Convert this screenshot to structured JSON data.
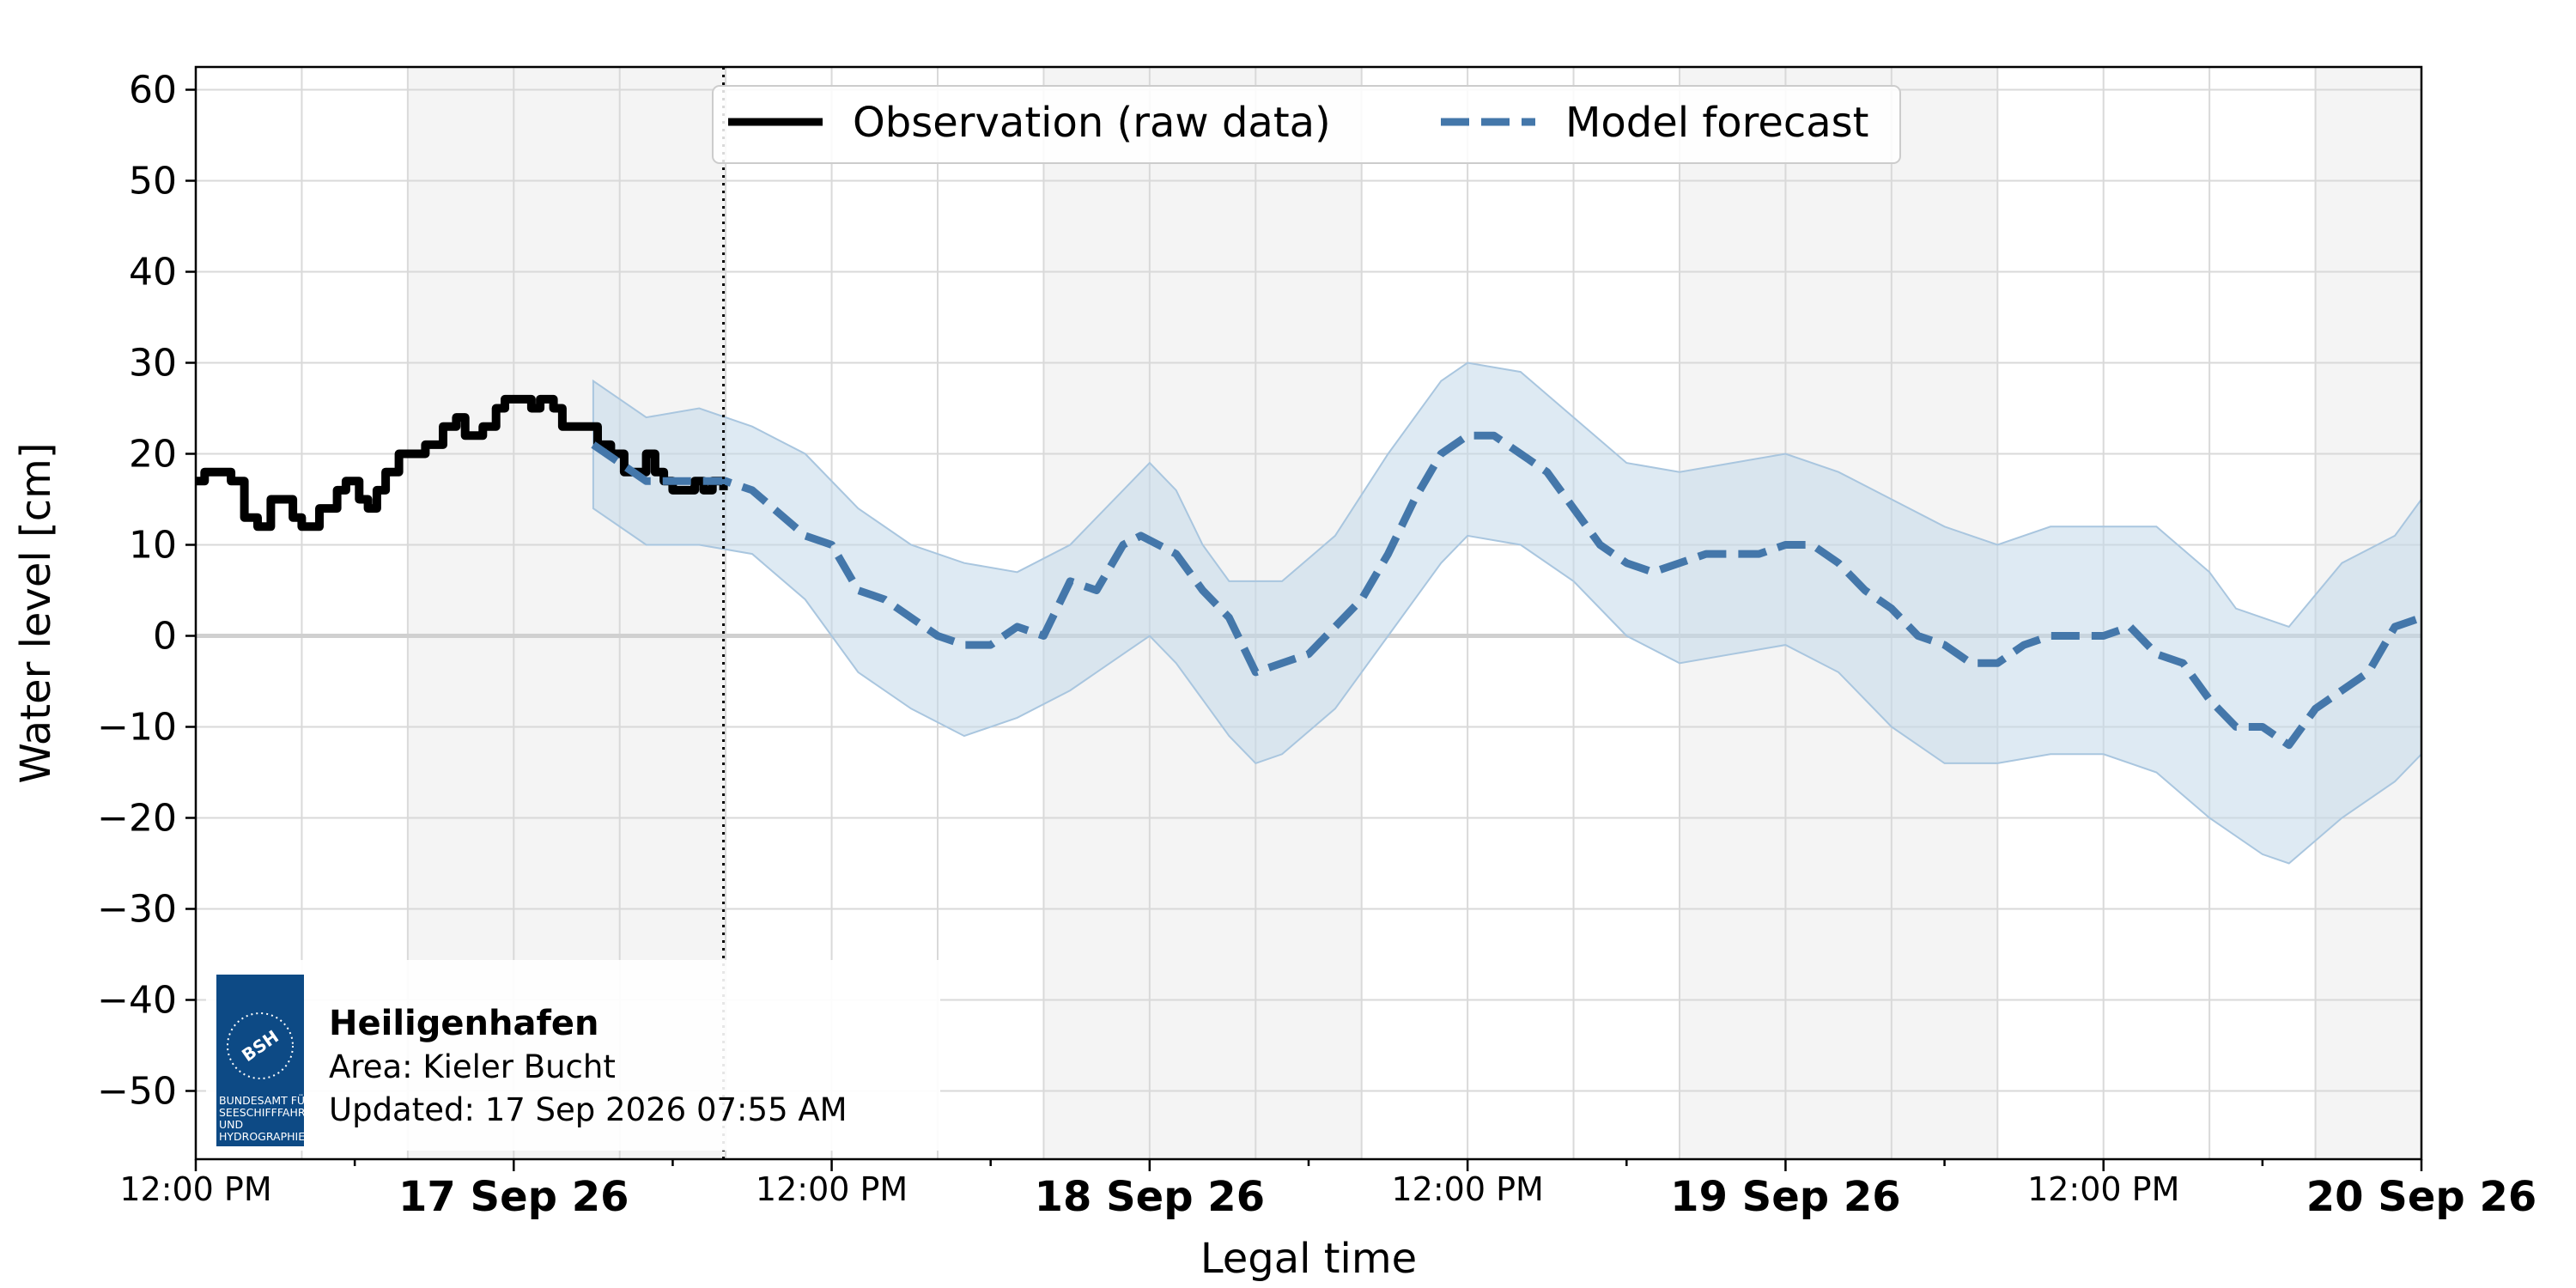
{
  "chart_data": {
    "type": "line",
    "xlabel": "Legal time",
    "ylabel": "Water level [cm]",
    "ylim": [
      -57.5,
      62.5
    ],
    "yticks": [
      -50,
      -40,
      -30,
      -20,
      -10,
      0,
      10,
      20,
      30,
      40,
      50,
      60
    ],
    "ytick_labels": [
      "−50",
      "−40",
      "−30",
      "−20",
      "−10",
      "0",
      "10",
      "20",
      "30",
      "40",
      "50",
      "60"
    ],
    "xlim": [
      "2026-09-16 12:00",
      "2026-09-20 00:00"
    ],
    "xticks_major": [
      {
        "x": "2026-09-16 12:00",
        "label": "12:00 PM",
        "bold": false
      },
      {
        "x": "2026-09-17 00:00",
        "label": "17 Sep 26",
        "bold": true
      },
      {
        "x": "2026-09-17 12:00",
        "label": "12:00 PM",
        "bold": false
      },
      {
        "x": "2026-09-18 00:00",
        "label": "18 Sep 26",
        "bold": true
      },
      {
        "x": "2026-09-18 12:00",
        "label": "12:00 PM",
        "bold": false
      },
      {
        "x": "2026-09-19 00:00",
        "label": "19 Sep 26",
        "bold": true
      },
      {
        "x": "2026-09-19 12:00",
        "label": "12:00 PM",
        "bold": false
      },
      {
        "x": "2026-09-20 00:00",
        "label": "20 Sep 26",
        "bold": true
      }
    ],
    "grid": true,
    "shaded_bands": [
      [
        "2026-09-16 20:00",
        "2026-09-17 08:00"
      ],
      [
        "2026-09-17 20:00",
        "2026-09-18 08:00"
      ],
      [
        "2026-09-18 20:00",
        "2026-09-19 08:00"
      ],
      [
        "2026-09-19 20:00",
        "2026-09-20 00:00"
      ]
    ],
    "now_marker": "2026-09-17 07:55",
    "legend_position": "top-center",
    "series": [
      {
        "name": "Observation (raw data)",
        "style": "solid",
        "color": "#000000",
        "points": [
          [
            "2026-09-16 12:00",
            17
          ],
          [
            "2026-09-16 12:20",
            18
          ],
          [
            "2026-09-16 13:20",
            17
          ],
          [
            "2026-09-16 13:50",
            13
          ],
          [
            "2026-09-16 14:20",
            12
          ],
          [
            "2026-09-16 14:50",
            15
          ],
          [
            "2026-09-16 15:40",
            13
          ],
          [
            "2026-09-16 16:00",
            12
          ],
          [
            "2026-09-16 16:40",
            14
          ],
          [
            "2026-09-16 17:20",
            16
          ],
          [
            "2026-09-16 17:40",
            17
          ],
          [
            "2026-09-16 18:10",
            15
          ],
          [
            "2026-09-16 18:30",
            14
          ],
          [
            "2026-09-16 18:50",
            16
          ],
          [
            "2026-09-16 19:10",
            18
          ],
          [
            "2026-09-16 19:40",
            20
          ],
          [
            "2026-09-16 20:40",
            21
          ],
          [
            "2026-09-16 21:20",
            23
          ],
          [
            "2026-09-16 21:50",
            24
          ],
          [
            "2026-09-16 22:10",
            22
          ],
          [
            "2026-09-16 22:50",
            23
          ],
          [
            "2026-09-16 23:20",
            25
          ],
          [
            "2026-09-16 23:40",
            26
          ],
          [
            "2026-09-17 00:20",
            26
          ],
          [
            "2026-09-17 00:40",
            25
          ],
          [
            "2026-09-17 01:00",
            26
          ],
          [
            "2026-09-17 01:30",
            25
          ],
          [
            "2026-09-17 01:50",
            23
          ],
          [
            "2026-09-17 02:50",
            23
          ],
          [
            "2026-09-17 03:10",
            21
          ],
          [
            "2026-09-17 03:40",
            20
          ],
          [
            "2026-09-17 04:10",
            18
          ],
          [
            "2026-09-17 04:30",
            18
          ],
          [
            "2026-09-17 05:00",
            20
          ],
          [
            "2026-09-17 05:20",
            18
          ],
          [
            "2026-09-17 05:40",
            17
          ],
          [
            "2026-09-17 06:00",
            16
          ],
          [
            "2026-09-17 06:40",
            16
          ],
          [
            "2026-09-17 06:50",
            17
          ],
          [
            "2026-09-17 07:10",
            16
          ],
          [
            "2026-09-17 07:30",
            17
          ],
          [
            "2026-09-17 07:55",
            16
          ]
        ]
      },
      {
        "name": "Model forecast",
        "style": "dashed",
        "color": "#4477aa",
        "points": [
          [
            "2026-09-17 03:00",
            21
          ],
          [
            "2026-09-17 05:00",
            17
          ],
          [
            "2026-09-17 06:00",
            17
          ],
          [
            "2026-09-17 08:00",
            17
          ],
          [
            "2026-09-17 09:00",
            16
          ],
          [
            "2026-09-17 11:00",
            11
          ],
          [
            "2026-09-17 12:00",
            10
          ],
          [
            "2026-09-17 13:00",
            5
          ],
          [
            "2026-09-17 14:00",
            4
          ],
          [
            "2026-09-17 15:00",
            2
          ],
          [
            "2026-09-17 16:00",
            0
          ],
          [
            "2026-09-17 17:00",
            -1
          ],
          [
            "2026-09-17 18:00",
            -1
          ],
          [
            "2026-09-17 19:00",
            1
          ],
          [
            "2026-09-17 20:00",
            0
          ],
          [
            "2026-09-17 21:00",
            6
          ],
          [
            "2026-09-17 22:00",
            5
          ],
          [
            "2026-09-17 23:00",
            10
          ],
          [
            "2026-09-17 23:40",
            11
          ],
          [
            "2026-09-18 01:00",
            9
          ],
          [
            "2026-09-18 02:00",
            5
          ],
          [
            "2026-09-18 03:00",
            2
          ],
          [
            "2026-09-18 04:00",
            -4
          ],
          [
            "2026-09-18 05:00",
            -3
          ],
          [
            "2026-09-18 06:00",
            -2
          ],
          [
            "2026-09-18 07:00",
            1
          ],
          [
            "2026-09-18 08:00",
            4
          ],
          [
            "2026-09-18 09:00",
            9
          ],
          [
            "2026-09-18 10:00",
            15
          ],
          [
            "2026-09-18 11:00",
            20
          ],
          [
            "2026-09-18 12:00",
            22
          ],
          [
            "2026-09-18 13:00",
            22
          ],
          [
            "2026-09-18 14:00",
            20
          ],
          [
            "2026-09-18 15:00",
            18
          ],
          [
            "2026-09-18 16:00",
            14
          ],
          [
            "2026-09-18 17:00",
            10
          ],
          [
            "2026-09-18 18:00",
            8
          ],
          [
            "2026-09-18 19:00",
            7
          ],
          [
            "2026-09-18 20:00",
            8
          ],
          [
            "2026-09-18 21:00",
            9
          ],
          [
            "2026-09-18 22:00",
            9
          ],
          [
            "2026-09-18 23:00",
            9
          ],
          [
            "2026-09-19 00:00",
            10
          ],
          [
            "2026-09-19 01:00",
            10
          ],
          [
            "2026-09-19 02:00",
            8
          ],
          [
            "2026-09-19 03:00",
            5
          ],
          [
            "2026-09-19 04:00",
            3
          ],
          [
            "2026-09-19 05:00",
            0
          ],
          [
            "2026-09-19 06:00",
            -1
          ],
          [
            "2026-09-19 07:00",
            -3
          ],
          [
            "2026-09-19 08:00",
            -3
          ],
          [
            "2026-09-19 09:00",
            -1
          ],
          [
            "2026-09-19 10:00",
            0
          ],
          [
            "2026-09-19 11:00",
            0
          ],
          [
            "2026-09-19 12:00",
            0
          ],
          [
            "2026-09-19 13:00",
            1
          ],
          [
            "2026-09-19 14:00",
            -2
          ],
          [
            "2026-09-19 15:00",
            -3
          ],
          [
            "2026-09-19 16:00",
            -7
          ],
          [
            "2026-09-19 17:00",
            -10
          ],
          [
            "2026-09-19 18:00",
            -10
          ],
          [
            "2026-09-19 19:00",
            -12
          ],
          [
            "2026-09-19 20:00",
            -8
          ],
          [
            "2026-09-19 21:00",
            -6
          ],
          [
            "2026-09-19 22:00",
            -4
          ],
          [
            "2026-09-19 23:00",
            1
          ],
          [
            "2026-09-20 00:00",
            2
          ]
        ]
      }
    ],
    "forecast_band": {
      "color": "#c3d8ea",
      "upper": [
        [
          "2026-09-17 03:00",
          28
        ],
        [
          "2026-09-17 05:00",
          24
        ],
        [
          "2026-09-17 07:00",
          25
        ],
        [
          "2026-09-17 09:00",
          23
        ],
        [
          "2026-09-17 11:00",
          20
        ],
        [
          "2026-09-17 13:00",
          14
        ],
        [
          "2026-09-17 15:00",
          10
        ],
        [
          "2026-09-17 17:00",
          8
        ],
        [
          "2026-09-17 19:00",
          7
        ],
        [
          "2026-09-17 21:00",
          10
        ],
        [
          "2026-09-17 23:00",
          16
        ],
        [
          "2026-09-18 00:00",
          19
        ],
        [
          "2026-09-18 01:00",
          16
        ],
        [
          "2026-09-18 02:00",
          10
        ],
        [
          "2026-09-18 03:00",
          6
        ],
        [
          "2026-09-18 05:00",
          6
        ],
        [
          "2026-09-18 07:00",
          11
        ],
        [
          "2026-09-18 09:00",
          20
        ],
        [
          "2026-09-18 11:00",
          28
        ],
        [
          "2026-09-18 12:00",
          30
        ],
        [
          "2026-09-18 14:00",
          29
        ],
        [
          "2026-09-18 16:00",
          24
        ],
        [
          "2026-09-18 18:00",
          19
        ],
        [
          "2026-09-18 20:00",
          18
        ],
        [
          "2026-09-18 22:00",
          19
        ],
        [
          "2026-09-19 00:00",
          20
        ],
        [
          "2026-09-19 02:00",
          18
        ],
        [
          "2026-09-19 04:00",
          15
        ],
        [
          "2026-09-19 06:00",
          12
        ],
        [
          "2026-09-19 08:00",
          10
        ],
        [
          "2026-09-19 10:00",
          12
        ],
        [
          "2026-09-19 12:00",
          12
        ],
        [
          "2026-09-19 14:00",
          12
        ],
        [
          "2026-09-19 16:00",
          7
        ],
        [
          "2026-09-19 17:00",
          3
        ],
        [
          "2026-09-19 19:00",
          1
        ],
        [
          "2026-09-19 21:00",
          8
        ],
        [
          "2026-09-19 23:00",
          11
        ],
        [
          "2026-09-20 00:00",
          15
        ]
      ],
      "lower": [
        [
          "2026-09-17 03:00",
          14
        ],
        [
          "2026-09-17 05:00",
          10
        ],
        [
          "2026-09-17 07:00",
          10
        ],
        [
          "2026-09-17 09:00",
          9
        ],
        [
          "2026-09-17 11:00",
          4
        ],
        [
          "2026-09-17 13:00",
          -4
        ],
        [
          "2026-09-17 15:00",
          -8
        ],
        [
          "2026-09-17 17:00",
          -11
        ],
        [
          "2026-09-17 19:00",
          -9
        ],
        [
          "2026-09-17 21:00",
          -6
        ],
        [
          "2026-09-17 23:00",
          -2
        ],
        [
          "2026-09-18 00:00",
          0
        ],
        [
          "2026-09-18 01:00",
          -3
        ],
        [
          "2026-09-18 02:00",
          -7
        ],
        [
          "2026-09-18 03:00",
          -11
        ],
        [
          "2026-09-18 04:00",
          -14
        ],
        [
          "2026-09-18 05:00",
          -13
        ],
        [
          "2026-09-18 07:00",
          -8
        ],
        [
          "2026-09-18 09:00",
          0
        ],
        [
          "2026-09-18 11:00",
          8
        ],
        [
          "2026-09-18 12:00",
          11
        ],
        [
          "2026-09-18 14:00",
          10
        ],
        [
          "2026-09-18 16:00",
          6
        ],
        [
          "2026-09-18 18:00",
          0
        ],
        [
          "2026-09-18 20:00",
          -3
        ],
        [
          "2026-09-18 22:00",
          -2
        ],
        [
          "2026-09-19 00:00",
          -1
        ],
        [
          "2026-09-19 02:00",
          -4
        ],
        [
          "2026-09-19 04:00",
          -10
        ],
        [
          "2026-09-19 06:00",
          -14
        ],
        [
          "2026-09-19 08:00",
          -14
        ],
        [
          "2026-09-19 10:00",
          -13
        ],
        [
          "2026-09-19 12:00",
          -13
        ],
        [
          "2026-09-19 14:00",
          -15
        ],
        [
          "2026-09-19 16:00",
          -20
        ],
        [
          "2026-09-19 18:00",
          -24
        ],
        [
          "2026-09-19 19:00",
          -25
        ],
        [
          "2026-09-19 21:00",
          -20
        ],
        [
          "2026-09-19 23:00",
          -16
        ],
        [
          "2026-09-20 00:00",
          -13
        ]
      ]
    }
  },
  "legend": {
    "observation_label": "Observation (raw data)",
    "forecast_label": "Model forecast"
  },
  "info_box": {
    "station": "Heiligenhafen",
    "area": "Area: Kieler Bucht",
    "updated": "Updated: 17 Sep 2026 07:55 AM",
    "logo_abbrev": "BSH",
    "logo_lines": [
      "BUNDESAMT FÜR",
      "SEESCHIFFFAHRT",
      "UND",
      "HYDROGRAPHIE"
    ]
  },
  "colors": {
    "observation": "#000000",
    "forecast": "#4477aa",
    "band_fill": "#c3d8ea",
    "band_edge": "#a9c6df",
    "logo_bg": "#0d4a85",
    "shaded_band": "#f4f4f4",
    "grid": "#d9d9d9"
  }
}
